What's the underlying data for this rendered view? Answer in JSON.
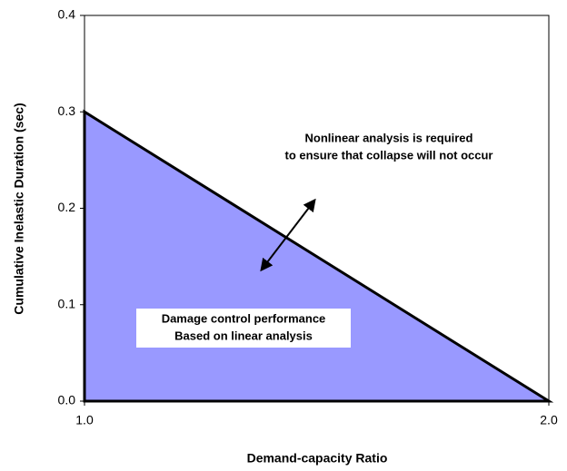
{
  "chart_data": {
    "type": "area",
    "x_label": "Demand-capacity Ratio",
    "y_label": "Cumulative Inelastic Duration (sec)",
    "x": [
      1,
      2
    ],
    "values": [
      0.3,
      0
    ],
    "color": "#9999ff",
    "xlim": [
      1,
      2
    ],
    "xticks": [
      {
        "value": 1,
        "label": "1.0"
      },
      {
        "value": 2,
        "label": "2.0"
      }
    ],
    "ylim": [
      0,
      0.4
    ],
    "yticks": [
      {
        "value": 0,
        "label": "0.0"
      },
      0.1,
      0.2,
      0.3,
      0.4
    ],
    "annotations": [
      "Nonlinear analysis is required",
      "to ensure that collapse will not occur",
      "Damage control performance",
      "Based on linear analysis"
    ]
  }
}
